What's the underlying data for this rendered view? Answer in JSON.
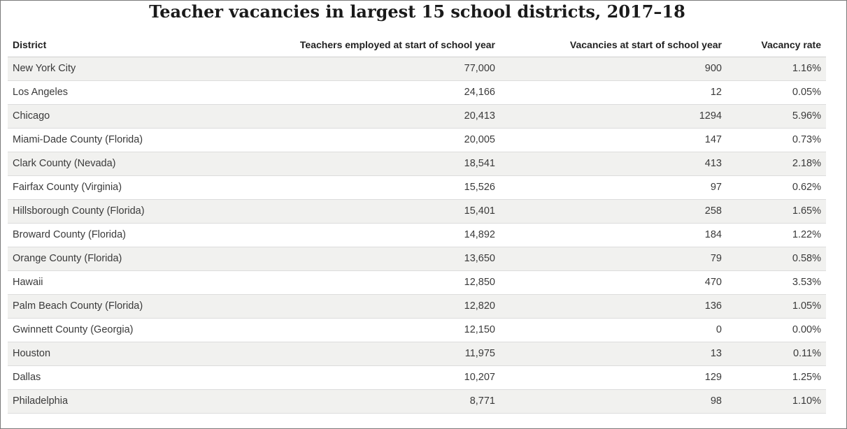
{
  "chart_data": {
    "type": "table",
    "title": "Teacher vacancies in largest 15 school districts, 2017–18",
    "columns": [
      "District",
      "Teachers employed at start of school year",
      "Vacancies at start of school year",
      "Vacancy rate"
    ],
    "rows": [
      [
        "New York City",
        "77,000",
        "900",
        "1.16%"
      ],
      [
        "Los Angeles",
        "24,166",
        "12",
        "0.05%"
      ],
      [
        "Chicago",
        "20,413",
        "1294",
        "5.96%"
      ],
      [
        "Miami-Dade County (Florida)",
        "20,005",
        "147",
        "0.73%"
      ],
      [
        "Clark County (Nevada)",
        "18,541",
        "413",
        "2.18%"
      ],
      [
        "Fairfax County (Virginia)",
        "15,526",
        "97",
        "0.62%"
      ],
      [
        "Hillsborough County (Florida)",
        "15,401",
        "258",
        "1.65%"
      ],
      [
        "Broward County (Florida)",
        "14,892",
        "184",
        "1.22%"
      ],
      [
        "Orange County (Florida)",
        "13,650",
        "79",
        "0.58%"
      ],
      [
        "Hawaii",
        "12,850",
        "470",
        "3.53%"
      ],
      [
        "Palm Beach County (Florida)",
        "12,820",
        "136",
        "1.05%"
      ],
      [
        "Gwinnett County (Georgia)",
        "12,150",
        "0",
        "0.00%"
      ],
      [
        "Houston",
        "11,975",
        "13",
        "0.11%"
      ],
      [
        "Dallas",
        "10,207",
        "129",
        "1.25%"
      ],
      [
        "Philadelphia",
        "8,771",
        "98",
        "1.10%"
      ]
    ],
    "teachers_employed": [
      77000,
      24166,
      20413,
      20005,
      18541,
      15526,
      15401,
      14892,
      13650,
      12850,
      12820,
      12150,
      11975,
      10207,
      8771
    ],
    "vacancies": [
      900,
      12,
      1294,
      147,
      413,
      97,
      258,
      184,
      79,
      470,
      136,
      0,
      13,
      129,
      98
    ],
    "vacancy_rate_percent": [
      1.16,
      0.05,
      5.96,
      0.73,
      2.18,
      0.62,
      1.65,
      1.22,
      0.58,
      3.53,
      1.05,
      0.0,
      0.11,
      1.25,
      1.1
    ],
    "colors": {
      "band_row": "#f1f1ef",
      "plain_row": "#ffffff",
      "row_rule": "#dcdcdc",
      "frame_border": "#7a7a7a"
    }
  }
}
